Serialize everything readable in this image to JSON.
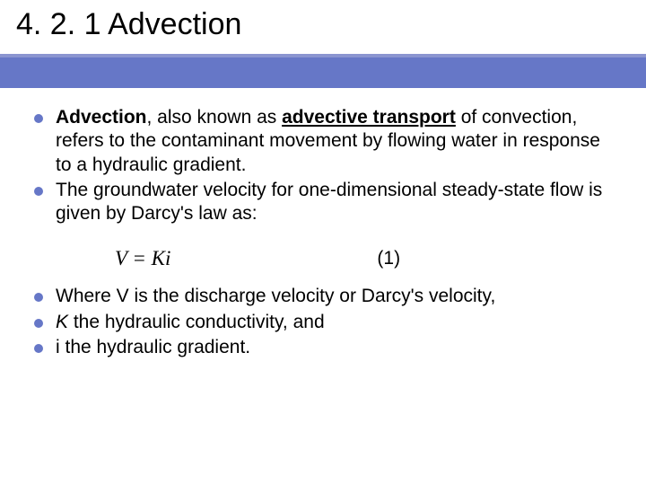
{
  "colors": {
    "bullet": "#6677c7",
    "band": "#6677c7",
    "underline": "#8b95d0",
    "text": "#000000",
    "background": "#ffffff"
  },
  "title": "4. 2. 1 Advection",
  "bullets_group1": [
    {
      "bold_lead": "Advection",
      "after_bold": ", also known as ",
      "bold_underline": "advective transport",
      "rest": " of convection, refers to the contaminant movement by flowing water in response to a hydraulic gradient."
    },
    {
      "text": "The groundwater velocity for one-dimensional steady-state flow is given by Darcy's law as:"
    }
  ],
  "equation": {
    "expr": "V = Ki",
    "label": "(1)"
  },
  "bullets_group2": [
    {
      "text": "Where V is the discharge velocity or Darcy's velocity,"
    },
    {
      "italic_lead": "K",
      "rest": " the hydraulic conductivity, and"
    },
    {
      "text": "i the hydraulic gradient."
    }
  ],
  "typography": {
    "title_fontsize": 34,
    "body_fontsize": 21,
    "equation_fontsize": 23
  }
}
